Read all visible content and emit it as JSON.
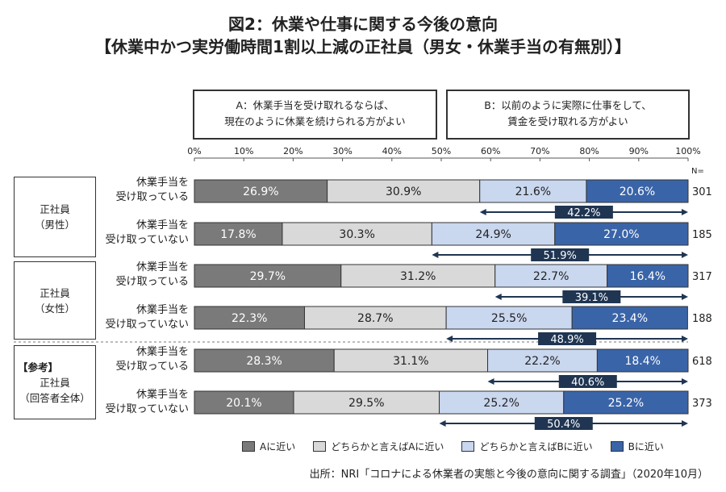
{
  "title_line1": "図2：休業や仕事に関する今後の意向",
  "title_line2": "【休業中かつ実労働時間1割以上減の正社員（男女・休業手当の有無別）】",
  "definitions": {
    "A": [
      "A：休業手当を受け取れるならば、",
      "現在のように休業を続けられる方がよい"
    ],
    "B": [
      "B：以前のように実際に仕事をして、",
      "賃金を受け取れる方がよい"
    ]
  },
  "groups": [
    {
      "lines": [
        "正社員",
        "（男性）"
      ]
    },
    {
      "lines": [
        "正社員",
        "（女性）"
      ]
    },
    {
      "lines": [
        "【参考】",
        "正社員",
        "（回答者全体）"
      ]
    }
  ],
  "row_labels": [
    [
      "休業手当を",
      "受け取っている"
    ],
    [
      "休業手当を",
      "受け取っていない"
    ],
    [
      "休業手当を",
      "受け取っている"
    ],
    [
      "休業手当を",
      "受け取っていない"
    ],
    [
      "休業手当を",
      "受け取っている"
    ],
    [
      "休業手当を",
      "受け取っていない"
    ]
  ],
  "n_header": "N=",
  "legend": [
    {
      "label": "Aに近い",
      "color": "#7a7a7a"
    },
    {
      "label": "どちらかと言えばAに近い",
      "color": "#d9d9d9"
    },
    {
      "label": "どちらかと言えばBに近い",
      "color": "#c9d7ef"
    },
    {
      "label": "Bに近い",
      "color": "#3a64a8"
    }
  ],
  "source": "出所：NRI「コロナによる休業者の実態と今後の意向に関する調査」（2020年10月）",
  "chart_data": {
    "type": "bar",
    "orientation": "horizontal",
    "stacked": true,
    "xlim": [
      0,
      100
    ],
    "x_ticks": [
      "0%",
      "10%",
      "20%",
      "30%",
      "40%",
      "50%",
      "60%",
      "70%",
      "80%",
      "90%",
      "100%"
    ],
    "series": [
      {
        "name": "Aに近い",
        "color": "#7a7a7a",
        "values": [
          26.9,
          17.8,
          29.7,
          22.3,
          28.3,
          20.1
        ]
      },
      {
        "name": "どちらかと言えばAに近い",
        "color": "#d9d9d9",
        "values": [
          30.9,
          30.3,
          31.2,
          28.7,
          31.1,
          29.5
        ]
      },
      {
        "name": "どちらかと言えばBに近い",
        "color": "#c9d7ef",
        "values": [
          21.6,
          24.9,
          22.7,
          25.5,
          22.2,
          25.2
        ]
      },
      {
        "name": "Bに近い",
        "color": "#3a64a8",
        "values": [
          20.6,
          27.0,
          16.4,
          23.4,
          18.4,
          25.2
        ]
      }
    ],
    "value_labels": [
      [
        "26.9%",
        "30.9%",
        "21.6%",
        "20.6%"
      ],
      [
        "17.8%",
        "30.3%",
        "24.9%",
        "27.0%"
      ],
      [
        "29.7%",
        "31.2%",
        "22.7%",
        "16.4%"
      ],
      [
        "22.3%",
        "28.7%",
        "25.5%",
        "23.4%"
      ],
      [
        "28.3%",
        "31.1%",
        "22.2%",
        "18.4%"
      ],
      [
        "20.1%",
        "29.5%",
        "25.2%",
        "25.2%"
      ]
    ],
    "n_values": [
      "301",
      "185",
      "317",
      "188",
      "618",
      "373"
    ],
    "b_totals": [
      {
        "label": "42.2%",
        "start": 57.8
      },
      {
        "label": "51.9%",
        "start": 48.1
      },
      {
        "label": "39.1%",
        "start": 60.9
      },
      {
        "label": "48.9%",
        "start": 51.0
      },
      {
        "label": "40.6%",
        "start": 59.4
      },
      {
        "label": "50.4%",
        "start": 49.6
      }
    ]
  }
}
